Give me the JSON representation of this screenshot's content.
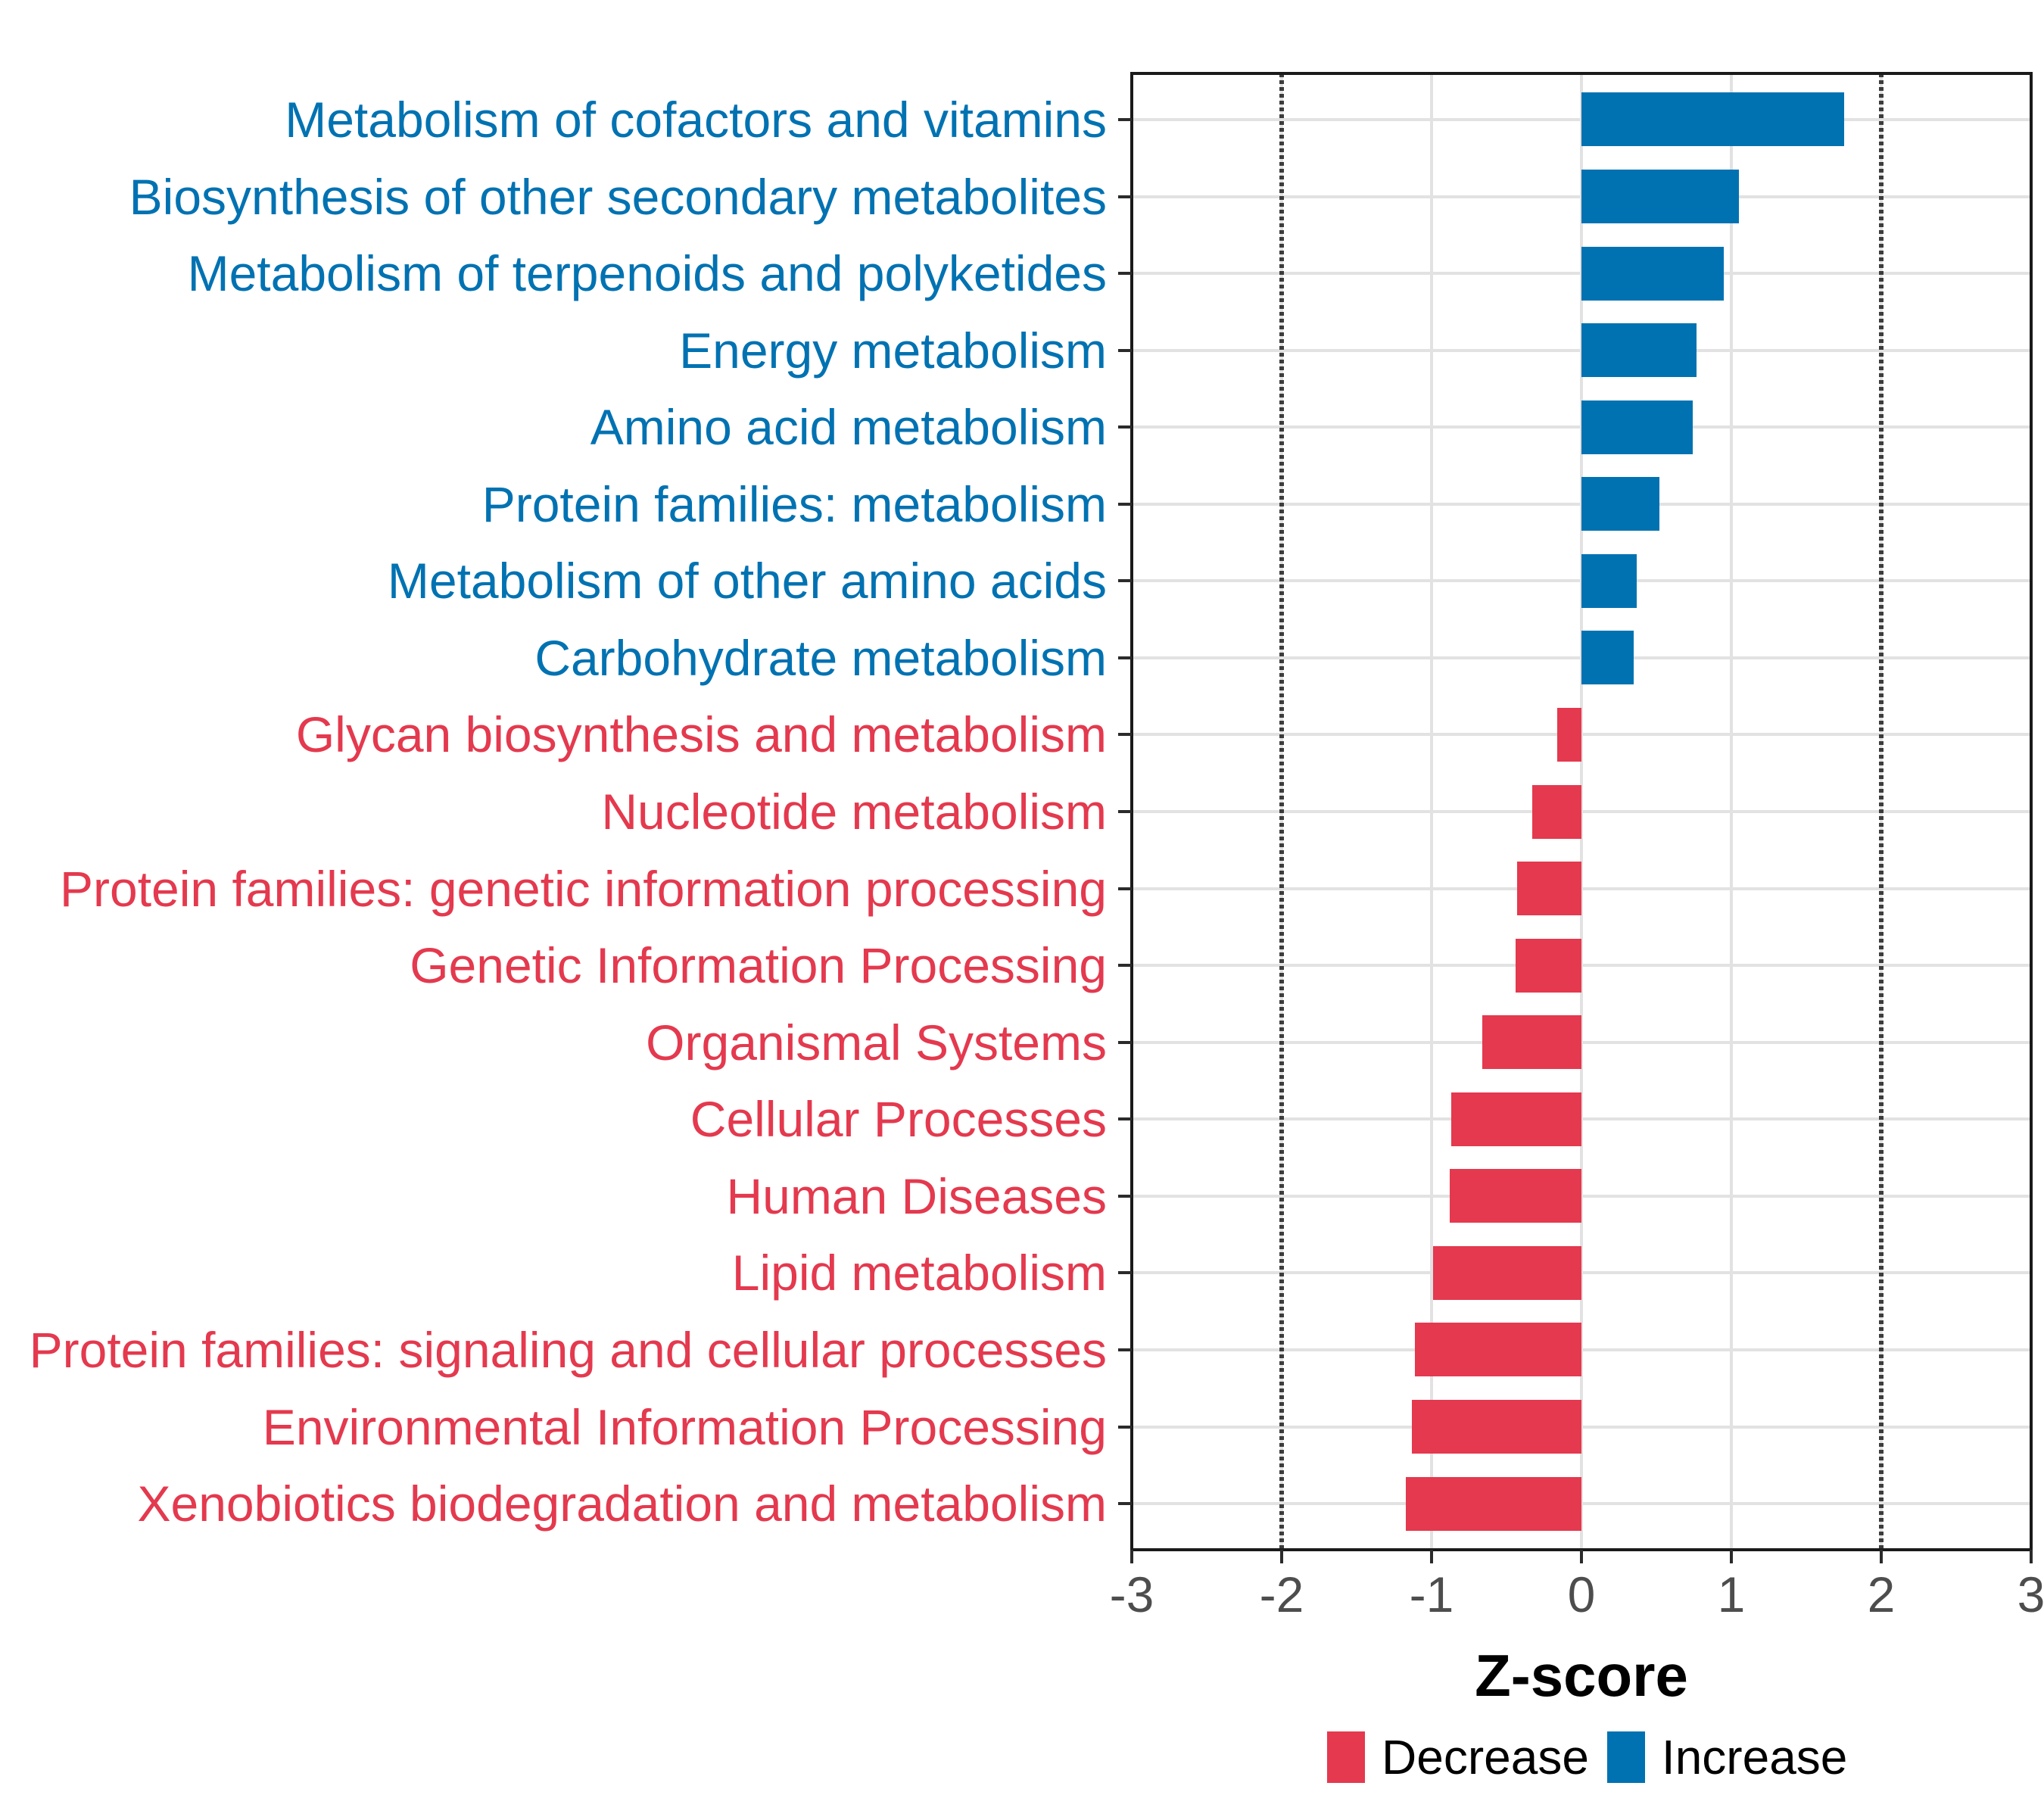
{
  "chart_data": {
    "type": "bar",
    "orientation": "horizontal",
    "title": "",
    "xlabel": "Z-score",
    "ylabel": "",
    "x_axis": {
      "min": -3,
      "max": 3,
      "ticks": [
        -3,
        -2,
        -1,
        0,
        1,
        2,
        3
      ]
    },
    "reference_lines": [
      -2,
      2
    ],
    "grid": true,
    "bar_width_fraction": 0.7,
    "colors": {
      "increase": "#0072B2",
      "decrease": "#E4394E"
    },
    "categories": [
      {
        "label": "Metabolism of cofactors and vitamins",
        "value": 1.75,
        "direction": "increase"
      },
      {
        "label": "Biosynthesis of other secondary metabolites",
        "value": 1.05,
        "direction": "increase"
      },
      {
        "label": "Metabolism of terpenoids and polyketides",
        "value": 0.95,
        "direction": "increase"
      },
      {
        "label": "Energy metabolism",
        "value": 0.77,
        "direction": "increase"
      },
      {
        "label": "Amino acid metabolism",
        "value": 0.74,
        "direction": "increase"
      },
      {
        "label": "Protein families: metabolism",
        "value": 0.52,
        "direction": "increase"
      },
      {
        "label": "Metabolism of other amino acids",
        "value": 0.37,
        "direction": "increase"
      },
      {
        "label": "Carbohydrate metabolism",
        "value": 0.35,
        "direction": "increase"
      },
      {
        "label": "Glycan biosynthesis and metabolism",
        "value": -0.16,
        "direction": "decrease"
      },
      {
        "label": "Nucleotide metabolism",
        "value": -0.33,
        "direction": "decrease"
      },
      {
        "label": "Protein families: genetic information processing",
        "value": -0.43,
        "direction": "decrease"
      },
      {
        "label": "Genetic Information Processing",
        "value": -0.44,
        "direction": "decrease"
      },
      {
        "label": "Organismal Systems",
        "value": -0.66,
        "direction": "decrease"
      },
      {
        "label": "Cellular Processes",
        "value": -0.87,
        "direction": "decrease"
      },
      {
        "label": "Human Diseases",
        "value": -0.88,
        "direction": "decrease"
      },
      {
        "label": "Lipid metabolism",
        "value": -0.99,
        "direction": "decrease"
      },
      {
        "label": "Protein families: signaling and cellular processes",
        "value": -1.11,
        "direction": "decrease"
      },
      {
        "label": "Environmental Information Processing",
        "value": -1.13,
        "direction": "decrease"
      },
      {
        "label": "Xenobiotics biodegradation and metabolism",
        "value": -1.17,
        "direction": "decrease"
      }
    ],
    "legend": {
      "position": "bottom",
      "items": [
        {
          "label": "Decrease",
          "color": "#E4394E"
        },
        {
          "label": "Increase",
          "color": "#0072B2"
        }
      ]
    }
  }
}
